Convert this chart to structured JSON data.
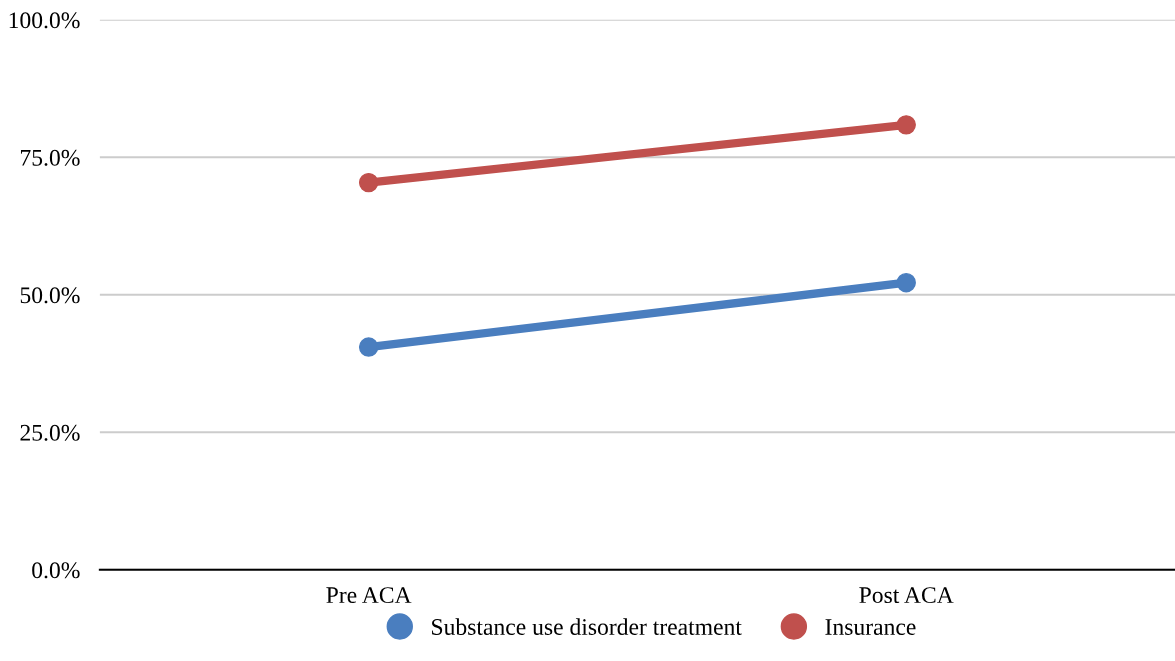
{
  "chart_data": {
    "type": "line",
    "categories": [
      "Pre ACA",
      "Post ACA"
    ],
    "series": [
      {
        "name": "Substance use disorder treatment",
        "color": "#4a7ebf",
        "values": [
          40.5,
          52.2
        ]
      },
      {
        "name": "Insurance",
        "color": "#c0504d",
        "values": [
          70.4,
          80.9
        ]
      }
    ],
    "ylim": [
      0,
      100
    ],
    "yticks": [
      {
        "value": 0,
        "label": "0.0%"
      },
      {
        "value": 25,
        "label": "25.0%"
      },
      {
        "value": 50,
        "label": "50.0%"
      },
      {
        "value": 75,
        "label": "75.0%"
      },
      {
        "value": 100,
        "label": "100.0%"
      }
    ],
    "grid": "y",
    "legend": "bottom",
    "marker": "circle",
    "line_style": "solid"
  }
}
